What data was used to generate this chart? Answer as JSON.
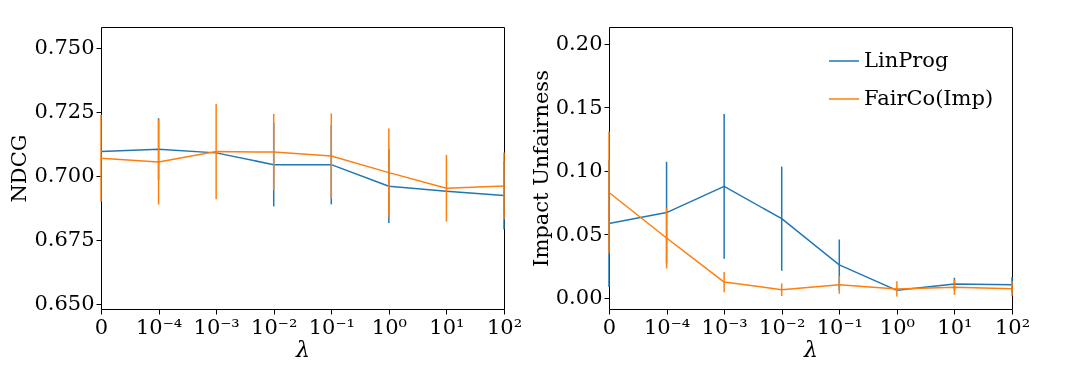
{
  "chart_data": [
    {
      "type": "line",
      "xlabel": "λ",
      "ylabel": "NDCG",
      "categories": [
        "0",
        "10⁻⁴",
        "10⁻³",
        "10⁻²",
        "10⁻¹",
        "10⁰",
        "10¹",
        "10²"
      ],
      "series": [
        {
          "color": "#1f77b4",
          "values": [
            0.7094,
            0.7103,
            0.7089,
            0.7043,
            0.7043,
            0.6959,
            0.6939,
            0.6923
          ],
          "errors": [
            null,
            0.0121,
            null,
            0.0163,
            0.0155,
            0.0144,
            null,
            0.0133
          ]
        },
        {
          "color": "#ff7f0e",
          "values": [
            0.7068,
            0.7053,
            0.7094,
            0.7092,
            0.7077,
            0.7012,
            0.6951,
            0.696
          ],
          "errors": [
            0.017,
            0.0166,
            0.0186,
            0.0149,
            0.0166,
            0.0172,
            0.013,
            0.013
          ]
        }
      ],
      "ylim": [
        0.648,
        0.758
      ],
      "yticks": [
        {
          "value": 0.65,
          "label": "0.650"
        },
        0.675,
        {
          "value": 0.7,
          "label": "0.700"
        },
        0.725,
        {
          "value": 0.75,
          "label": "0.750"
        }
      ],
      "grid": false,
      "legend": false,
      "marker": "none",
      "line_style": "solid"
    },
    {
      "type": "line",
      "xlabel": "λ",
      "ylabel": "Impact Unfairness",
      "categories": [
        "0",
        "10⁻⁴",
        "10⁻³",
        "10⁻²",
        "10⁻¹",
        "10⁰",
        "10¹",
        "10²"
      ],
      "series": [
        {
          "name": "LinProg",
          "color": "#1f77b4",
          "values": [
            0.0583,
            0.0669,
            0.0875,
            0.0621,
            0.0257,
            0.0057,
            0.0106,
            0.01
          ],
          "errors": [
            0.05,
            0.04,
            0.057,
            0.041,
            0.02,
            null,
            0.005,
            0.006
          ]
        },
        {
          "name": "FairCo(Imp)",
          "color": "#ff7f0e",
          "values": [
            0.0827,
            0.0469,
            0.0122,
            0.0062,
            0.01,
            0.0068,
            0.0081,
            0.007
          ],
          "errors": [
            0.048,
            0.024,
            0.008,
            0.005,
            0.007,
            0.006,
            0.006,
            0.006
          ]
        }
      ],
      "ylim": [
        -0.009,
        0.213
      ],
      "yticks": [
        {
          "value": 0,
          "label": "0.00"
        },
        0.05,
        {
          "value": 0.1,
          "label": "0.10"
        },
        0.15,
        {
          "value": 0.2,
          "label": "0.20"
        }
      ],
      "grid": false,
      "legend": "top right",
      "marker": "none",
      "line_style": "solid"
    }
  ]
}
